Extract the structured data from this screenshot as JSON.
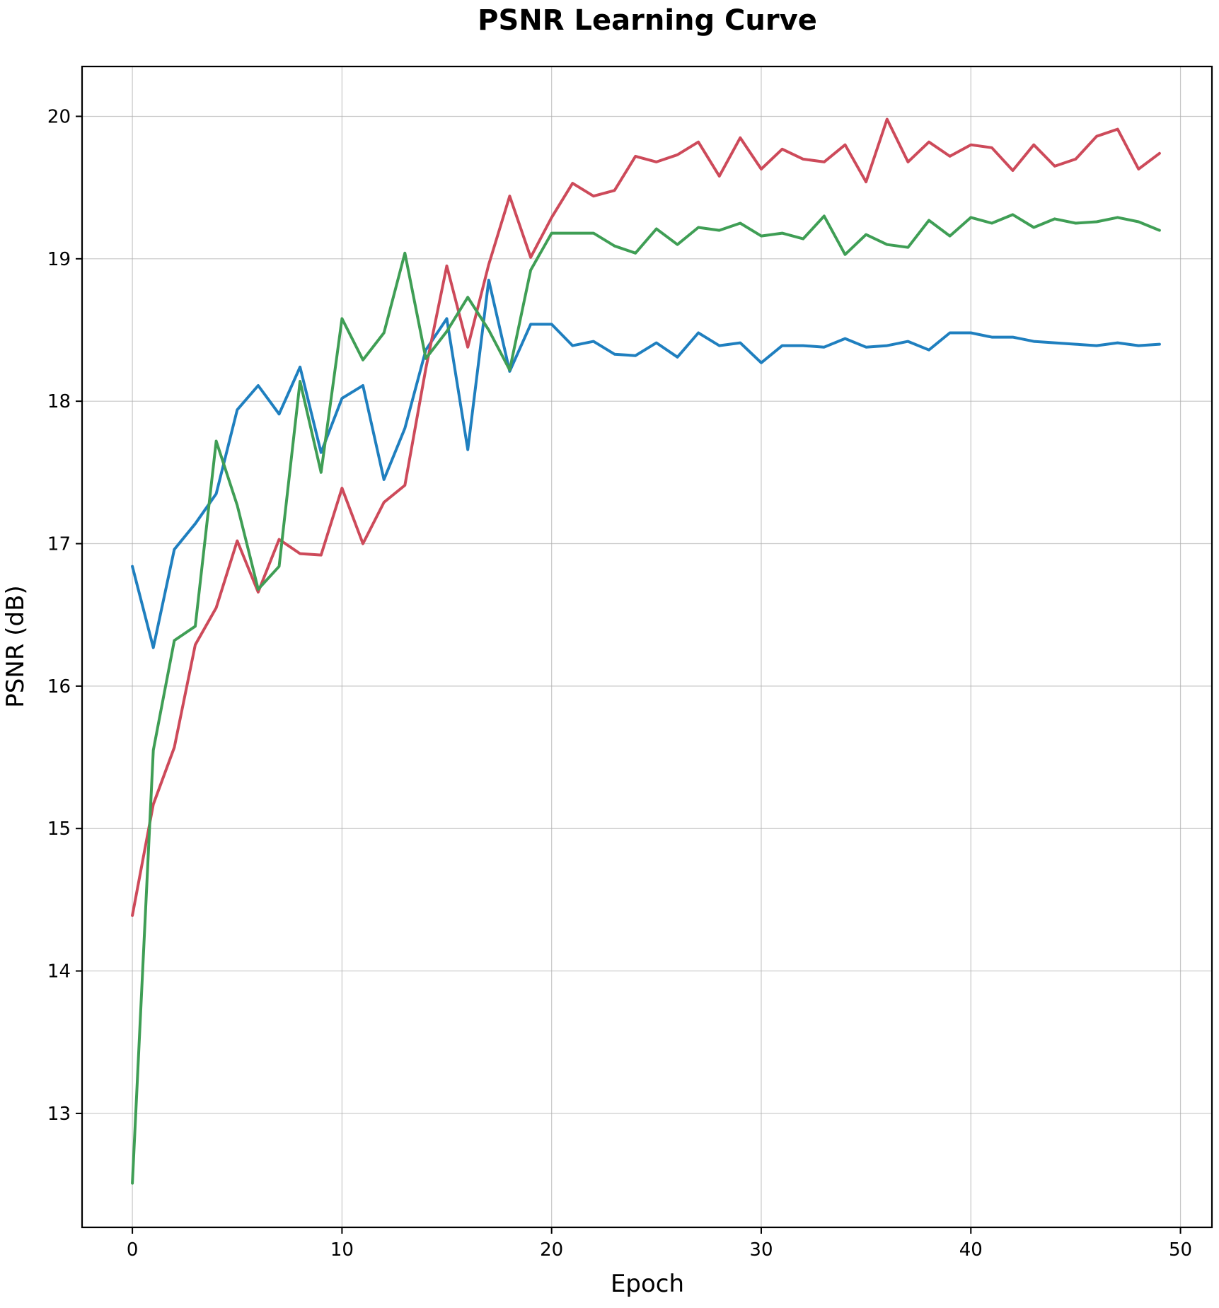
{
  "chart_data": {
    "type": "line",
    "title": "PSNR Learning Curve",
    "xlabel": "Epoch",
    "ylabel": "PSNR (dB)",
    "xlim": [
      -2.4,
      51.5
    ],
    "ylim": [
      12.2,
      20.35
    ],
    "xticks": [
      0,
      10,
      20,
      30,
      40,
      50
    ],
    "yticks": [
      13,
      14,
      15,
      16,
      17,
      18,
      19,
      20
    ],
    "grid": true,
    "legend": "none",
    "x": [
      0,
      1,
      2,
      3,
      4,
      5,
      6,
      7,
      8,
      9,
      10,
      11,
      12,
      13,
      14,
      15,
      16,
      17,
      18,
      19,
      20,
      21,
      22,
      23,
      24,
      25,
      26,
      27,
      28,
      29,
      30,
      31,
      32,
      33,
      34,
      35,
      36,
      37,
      38,
      39,
      40,
      41,
      42,
      43,
      44,
      45,
      46,
      47,
      48,
      49
    ],
    "series": [
      {
        "color": "#1f7fbf",
        "values": [
          16.84,
          16.27,
          16.96,
          17.14,
          17.35,
          17.94,
          18.11,
          17.91,
          18.24,
          17.64,
          18.02,
          18.11,
          17.45,
          17.81,
          18.36,
          18.58,
          17.66,
          18.85,
          18.21,
          18.54,
          18.54,
          18.39,
          18.42,
          18.33,
          18.32,
          18.41,
          18.31,
          18.48,
          18.39,
          18.41,
          18.27,
          18.39,
          18.39,
          18.38,
          18.44,
          18.38,
          18.39,
          18.42,
          18.36,
          18.48,
          18.48,
          18.45,
          18.45,
          18.42,
          18.41,
          18.4,
          18.39,
          18.41,
          18.39,
          18.4
        ]
      },
      {
        "color": "#cd4a5a",
        "values": [
          14.39,
          15.17,
          15.57,
          16.29,
          16.55,
          17.02,
          16.66,
          17.03,
          16.93,
          16.92,
          17.39,
          17.0,
          17.29,
          17.41,
          18.23,
          18.95,
          18.38,
          18.96,
          19.44,
          19.01,
          19.29,
          19.53,
          19.44,
          19.48,
          19.72,
          19.68,
          19.73,
          19.82,
          19.58,
          19.85,
          19.63,
          19.77,
          19.7,
          19.68,
          19.8,
          19.54,
          19.98,
          19.68,
          19.82,
          19.72,
          19.8,
          19.78,
          19.62,
          19.8,
          19.65,
          19.7,
          19.86,
          19.91,
          19.63,
          19.74
        ]
      },
      {
        "color": "#3f9e55",
        "values": [
          12.51,
          15.55,
          16.32,
          16.42,
          17.72,
          17.27,
          16.68,
          16.84,
          18.14,
          17.5,
          18.58,
          18.29,
          18.48,
          19.04,
          18.3,
          18.49,
          18.73,
          18.5,
          18.22,
          18.92,
          19.18,
          19.18,
          19.18,
          19.09,
          19.04,
          19.21,
          19.1,
          19.22,
          19.2,
          19.25,
          19.16,
          19.18,
          19.14,
          19.3,
          19.03,
          19.17,
          19.1,
          19.08,
          19.27,
          19.16,
          19.29,
          19.25,
          19.31,
          19.22,
          19.28,
          19.25,
          19.26,
          19.29,
          19.26,
          19.2
        ]
      }
    ]
  }
}
